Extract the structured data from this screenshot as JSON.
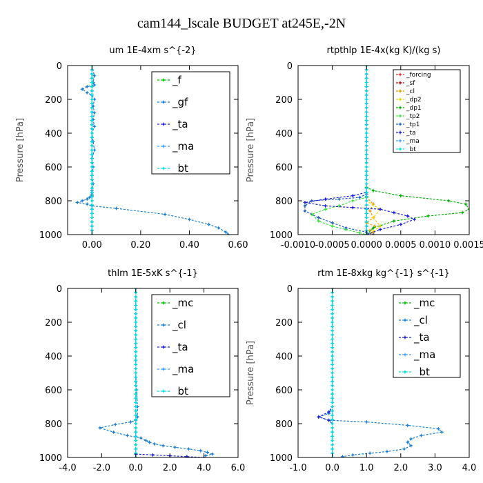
{
  "figure": {
    "title": "cam144_lscale  BUDGET at245E,-2N"
  },
  "chart_data": [
    {
      "type": "line",
      "title": "um  1E-4xm s^{-2}",
      "ylabel": "Pressure [hPa]",
      "xlabel": "",
      "xlim": [
        -0.1,
        0.6
      ],
      "ylim": [
        1000,
        0
      ],
      "x_ticks": [
        0.0,
        0.2,
        0.4,
        0.6
      ],
      "x_tick_labels": [
        "0.00",
        "0.20",
        "0.40",
        "0.60"
      ],
      "y_ticks": [
        0,
        200,
        400,
        600,
        800,
        1000
      ],
      "legend": {
        "position": "top-right",
        "style": "large"
      },
      "series": [
        {
          "name": "_f",
          "color": "#00c000",
          "x": [
            0,
            0
          ],
          "y": [
            0,
            1000
          ]
        },
        {
          "name": "_gf",
          "color": "#1c7fd0",
          "x": [
            0.0,
            0.01,
            0.005,
            0.01,
            -0.02,
            -0.04,
            -0.02,
            0.0,
            0.01,
            0.005,
            0.01,
            0.005,
            0.01,
            0.0,
            0.005,
            0.01,
            0.0,
            0.005,
            0.0,
            0.005,
            0.0,
            0.0,
            0.0,
            -0.01,
            -0.02,
            -0.04,
            -0.06,
            -0.02,
            0.0,
            0.1,
            0.3,
            0.4,
            0.48,
            0.52,
            0.55,
            0.56
          ],
          "y": [
            0,
            60,
            100,
            115,
            125,
            140,
            160,
            175,
            200,
            240,
            280,
            320,
            360,
            400,
            450,
            500,
            550,
            600,
            650,
            700,
            740,
            760,
            770,
            780,
            790,
            800,
            810,
            820,
            830,
            845,
            880,
            910,
            940,
            960,
            985,
            1000
          ]
        },
        {
          "name": "_ta",
          "color": "#2020d0",
          "x": [
            0,
            0
          ],
          "y": [
            0,
            1000
          ]
        },
        {
          "name": "_ma",
          "color": "#40a0ff",
          "x": [
            0,
            0
          ],
          "y": [
            0,
            1000
          ]
        },
        {
          "name": "_bt",
          "color": "#00e0e0",
          "x": [
            0,
            0
          ],
          "y": [
            0,
            1000
          ]
        }
      ]
    },
    {
      "type": "line",
      "title": "rtpthlp  1E-4x(kg K)/(kg s)",
      "ylabel": "Pressure [hPa]",
      "xlabel": "",
      "xlim": [
        -0.001,
        0.0015
      ],
      "ylim": [
        1000,
        0
      ],
      "x_ticks": [
        -0.001,
        -0.0005,
        0.0,
        0.0005,
        0.001,
        0.0015
      ],
      "x_tick_labels": [
        "-0.0010",
        "-0.0005",
        "0.0000",
        "0.0005",
        "0.0010",
        "0.0015"
      ],
      "y_ticks": [
        0,
        200,
        400,
        600,
        800,
        1000
      ],
      "legend": {
        "position": "top-right",
        "style": "small"
      },
      "series": [
        {
          "name": "_forcing",
          "color": "#e03030",
          "x": [
            0,
            0
          ],
          "y": [
            0,
            1000
          ]
        },
        {
          "name": "_sf",
          "color": "#c00000",
          "x": [
            0,
            0
          ],
          "y": [
            0,
            1000
          ]
        },
        {
          "name": "_cl",
          "color": "#e0a000",
          "x": [
            0.0,
            0.0,
            0.0001,
            5e-05,
            0.0001,
            0.0,
            0.00012,
            5e-05,
            0.0001,
            0.0
          ],
          "y": [
            0,
            780,
            820,
            860,
            900,
            930,
            950,
            975,
            990,
            1000
          ]
        },
        {
          "name": "_dp2",
          "color": "#f0d000",
          "x": [
            0.0,
            0.0,
            0.0002,
            0.0001,
            0.0002,
            0.0001,
            0.0
          ],
          "y": [
            0,
            800,
            850,
            900,
            950,
            980,
            1000
          ]
        },
        {
          "name": "_dp1",
          "color": "#00b000",
          "x": [
            0.0,
            0.0,
            0.0001,
            0.0005,
            0.0012,
            0.00145,
            0.0015,
            0.0014,
            0.0009,
            0.0004,
            0.0001,
            0.0
          ],
          "y": [
            0,
            720,
            740,
            770,
            800,
            820,
            850,
            870,
            890,
            920,
            960,
            1000
          ]
        },
        {
          "name": "_tp2",
          "color": "#40e040",
          "x": [
            0.0,
            0.0,
            -0.0002,
            -0.0004,
            -0.0006,
            -0.0008,
            -0.0007,
            -0.0005,
            -0.0003,
            -0.0001,
            0.0
          ],
          "y": [
            0,
            780,
            800,
            830,
            850,
            880,
            920,
            950,
            970,
            990,
            1000
          ]
        },
        {
          "name": "_tp1",
          "color": "#2060c0",
          "x": [
            0.0,
            0.0,
            -0.0001,
            -0.0004,
            -0.0008,
            -0.0009,
            -0.0009,
            -0.0007,
            -0.0005,
            -0.0003,
            0.0,
            0.0001
          ],
          "y": [
            0,
            760,
            780,
            790,
            800,
            830,
            860,
            900,
            930,
            960,
            985,
            1000
          ]
        },
        {
          "name": "_ta",
          "color": "#2020d0",
          "x": [
            0.0,
            0.0,
            -0.0002,
            -0.0006,
            -0.0009,
            -0.0006,
            -0.0002,
            0.0002,
            0.0004,
            0.0006,
            0.0007,
            0.0005,
            0.0002,
            0.0
          ],
          "y": [
            0,
            750,
            770,
            790,
            810,
            830,
            840,
            850,
            870,
            890,
            910,
            940,
            970,
            1000
          ]
        },
        {
          "name": "_ma",
          "color": "#40a0ff",
          "x": [
            0,
            0
          ],
          "y": [
            0,
            1000
          ]
        },
        {
          "name": "_bt",
          "color": "#00e0e0",
          "x": [
            0,
            0
          ],
          "y": [
            0,
            1000
          ]
        }
      ]
    },
    {
      "type": "line",
      "title": "thlm  1E-5xK s^{-1}",
      "ylabel": "",
      "xlabel": "",
      "xlim": [
        -4.0,
        6.0
      ],
      "ylim": [
        1000,
        0
      ],
      "x_ticks": [
        -4.0,
        -2.0,
        0.0,
        2.0,
        4.0,
        6.0
      ],
      "x_tick_labels": [
        "-4.0",
        "-2.0",
        "0.0",
        "2.0",
        "4.0",
        "6.0"
      ],
      "y_ticks": [
        0,
        200,
        400,
        600,
        800,
        1000
      ],
      "legend": {
        "position": "top-right",
        "style": "large"
      },
      "series": [
        {
          "name": "_mc",
          "color": "#00c000",
          "x": [
            0,
            0
          ],
          "y": [
            0,
            1000
          ]
        },
        {
          "name": "_cl",
          "color": "#1c7fd0",
          "x": [
            0.0,
            0.0,
            0.05,
            0.1,
            0.1,
            0.0,
            -0.3,
            -1.2,
            -2.1,
            -1.3,
            -0.5,
            0.3,
            0.6,
            0.8,
            1.1,
            1.6,
            2.3,
            3.1,
            3.8,
            4.2,
            4.5,
            4.1
          ],
          "y": [
            0,
            500,
            600,
            700,
            760,
            780,
            790,
            805,
            825,
            850,
            870,
            885,
            900,
            910,
            920,
            930,
            940,
            950,
            960,
            970,
            980,
            990
          ]
        },
        {
          "name": "_ta",
          "color": "#2020d0",
          "x": [
            0.0,
            0.0,
            1.0,
            2.0,
            3.0,
            4.0
          ],
          "y": [
            0,
            980,
            985,
            990,
            995,
            1000
          ]
        },
        {
          "name": "_ma",
          "color": "#40a0ff",
          "x": [
            0,
            0
          ],
          "y": [
            0,
            1000
          ]
        },
        {
          "name": "_bt",
          "color": "#00e0e0",
          "x": [
            0,
            0
          ],
          "y": [
            0,
            1000
          ]
        }
      ]
    },
    {
      "type": "line",
      "title": "rtm  1E-8xkg kg^{-1} s^{-1}",
      "ylabel": "Pressure [hPa]",
      "xlabel": "",
      "xlim": [
        -1.0,
        4.0
      ],
      "ylim": [
        1000,
        0
      ],
      "x_ticks": [
        -1.0,
        0.0,
        1.0,
        2.0,
        3.0,
        4.0
      ],
      "x_tick_labels": [
        "-1.0",
        "0.0",
        "1.0",
        "2.0",
        "3.0",
        "4.0"
      ],
      "y_ticks": [
        0,
        200,
        400,
        600,
        800,
        1000
      ],
      "legend": {
        "position": "top-right",
        "style": "large"
      },
      "series": [
        {
          "name": "_mc",
          "color": "#00c000",
          "x": [
            0,
            0
          ],
          "y": [
            0,
            1000
          ]
        },
        {
          "name": "_cl",
          "color": "#1c7fd0",
          "x": [
            0.0,
            0.0,
            -0.1,
            -0.4,
            -0.1,
            1.0,
            2.2,
            3.1,
            3.2,
            2.6,
            2.3,
            2.2,
            2.3,
            2.1,
            1.6,
            1.1,
            0.6,
            0.3
          ],
          "y": [
            0,
            700,
            740,
            760,
            780,
            790,
            810,
            830,
            850,
            870,
            890,
            910,
            930,
            950,
            965,
            975,
            985,
            995
          ]
        },
        {
          "name": "_ta",
          "color": "#2020d0",
          "x": [
            0.0,
            0.0,
            -0.1,
            -0.4,
            -0.1,
            0.0
          ],
          "y": [
            0,
            700,
            730,
            760,
            780,
            800
          ]
        },
        {
          "name": "_ma",
          "color": "#40a0ff",
          "x": [
            0,
            0
          ],
          "y": [
            0,
            1000
          ]
        },
        {
          "name": "_bt",
          "color": "#00e0e0",
          "x": [
            0,
            0
          ],
          "y": [
            0,
            1000
          ]
        }
      ]
    }
  ]
}
